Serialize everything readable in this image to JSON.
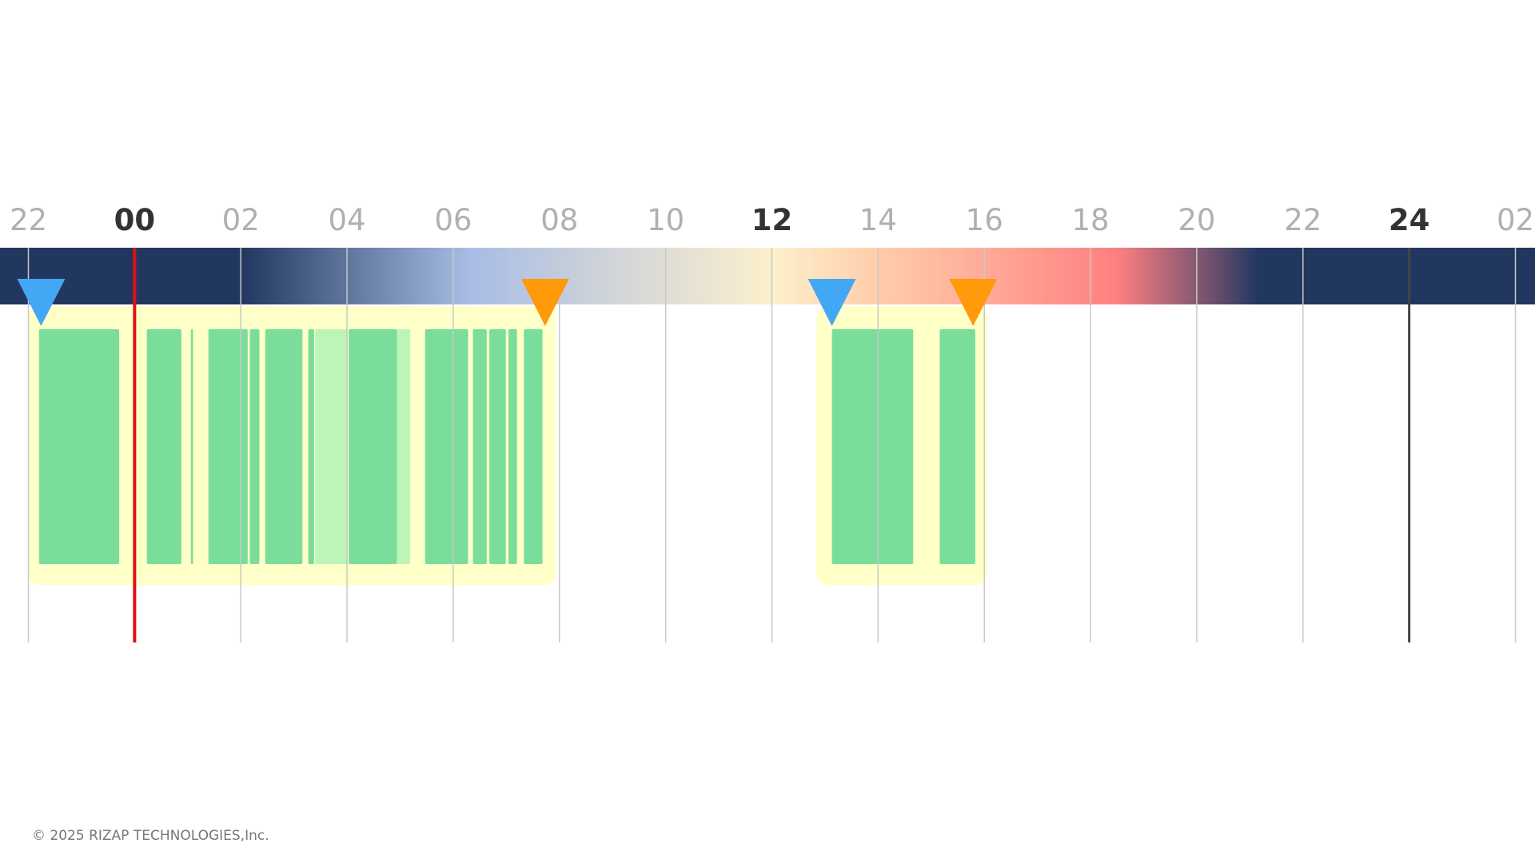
{
  "timeline": {
    "hour_ticks": [
      {
        "value": -2,
        "label": "22"
      },
      {
        "value": 0,
        "label": "00"
      },
      {
        "value": 2,
        "label": "02"
      },
      {
        "value": 4,
        "label": "04"
      },
      {
        "value": 6,
        "label": "06"
      },
      {
        "value": 8,
        "label": "08"
      },
      10,
      12,
      14,
      16,
      18,
      20,
      22,
      24,
      {
        "value": 26,
        "label": "02"
      }
    ],
    "xlim": [
      -2,
      26
    ],
    "current_time": 0,
    "day_boundary": 24,
    "sessions": [
      {
        "start": -2,
        "end": 7.93,
        "sleep_onset": -1.76,
        "wake": 7.73,
        "segments": [
          {
            "start": -1.8,
            "end": -0.29,
            "color": "#7ade9a"
          },
          {
            "start": 0.23,
            "end": 0.88,
            "color": "#7ade9a"
          },
          {
            "start": 1.06,
            "end": 1.1,
            "color": "#7ade9a"
          },
          {
            "start": 1.39,
            "end": 2.13,
            "color": "#7ade9a"
          },
          {
            "start": 2.17,
            "end": 2.35,
            "color": "#7ade9a"
          },
          {
            "start": 2.46,
            "end": 3.16,
            "color": "#7ade9a"
          },
          {
            "start": 3.27,
            "end": 3.38,
            "color": "#7ade9a"
          },
          {
            "start": 3.4,
            "end": 4.01,
            "color": "#bdf5b8"
          },
          {
            "start": 4.03,
            "end": 4.94,
            "color": "#7ade9a"
          },
          {
            "start": 4.94,
            "end": 5.19,
            "color": "#bdf5b8"
          },
          {
            "start": 5.47,
            "end": 6.28,
            "color": "#7ade9a"
          },
          {
            "start": 6.37,
            "end": 6.63,
            "color": "#7ade9a"
          },
          {
            "start": 6.68,
            "end": 6.99,
            "color": "#7ade9a"
          },
          {
            "start": 7.04,
            "end": 7.2,
            "color": "#7ade9a"
          },
          {
            "start": 7.33,
            "end": 7.68,
            "color": "#7ade9a"
          }
        ]
      },
      {
        "start": 12.84,
        "end": 16.05,
        "sleep_onset": 13.13,
        "wake": 15.79,
        "segments": [
          {
            "start": 13.13,
            "end": 14.66,
            "color": "#7ade9a"
          },
          {
            "start": 15.16,
            "end": 15.83,
            "color": "#7ade9a"
          }
        ]
      }
    ],
    "onset_color": "#42a8f5",
    "wake_color": "#ff9a0a"
  },
  "footer": {
    "copyright": "© 2025 RIZAP TECHNOLOGIES,Inc."
  }
}
